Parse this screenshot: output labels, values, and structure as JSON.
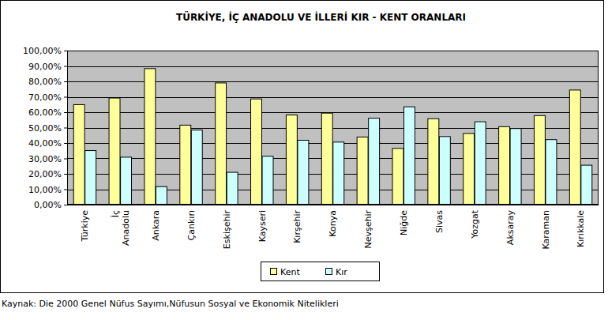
{
  "chart_data": {
    "type": "bar",
    "title": "TÜRKİYE, İÇ ANADOLU VE İLLERİ KIR - KENT ORANLARI",
    "source": "Kaynak: Die 2000 Genel Nüfus Sayımı,Nüfusun Sosyal ve Ekonomik Nitelikleri",
    "categories": [
      "Türkiye",
      "İç Anadolu",
      "Ankara",
      "Çankırı",
      "Eskişehir",
      "Kayseri",
      "Kırşehir",
      "Konya",
      "Nevşehir",
      "Niğde",
      "Sivas",
      "Yozgat",
      "Aksaray",
      "Karaman",
      "Kırıkkale"
    ],
    "series": [
      {
        "name": "Kent",
        "color": "#ffff99",
        "values": [
          64.9,
          69.2,
          88.3,
          51.6,
          79.0,
          68.6,
          58.2,
          59.4,
          43.9,
          36.5,
          55.8,
          46.2,
          50.6,
          57.8,
          74.4
        ]
      },
      {
        "name": "Kır",
        "color": "#ccffff",
        "values": [
          35.1,
          30.8,
          11.7,
          48.4,
          21.0,
          31.4,
          41.8,
          40.6,
          56.1,
          63.5,
          44.2,
          53.8,
          49.4,
          42.2,
          25.6
        ]
      }
    ],
    "ylim": [
      0,
      100
    ],
    "yticks": [
      {
        "value": 0,
        "label": "0,00%"
      },
      {
        "value": 10,
        "label": "10,00%"
      },
      {
        "value": 20,
        "label": "20,00%"
      },
      {
        "value": 30,
        "label": "30,00%"
      },
      {
        "value": 40,
        "label": "40,00%"
      },
      {
        "value": 50,
        "label": "50,00%"
      },
      {
        "value": 60,
        "label": "60,00%"
      },
      {
        "value": 70,
        "label": "70,00%"
      },
      {
        "value": 80,
        "label": "80,00%"
      },
      {
        "value": 90,
        "label": "90,00%"
      },
      {
        "value": 100,
        "label": "100,00%"
      }
    ],
    "grid": true,
    "legend": "bottom"
  }
}
